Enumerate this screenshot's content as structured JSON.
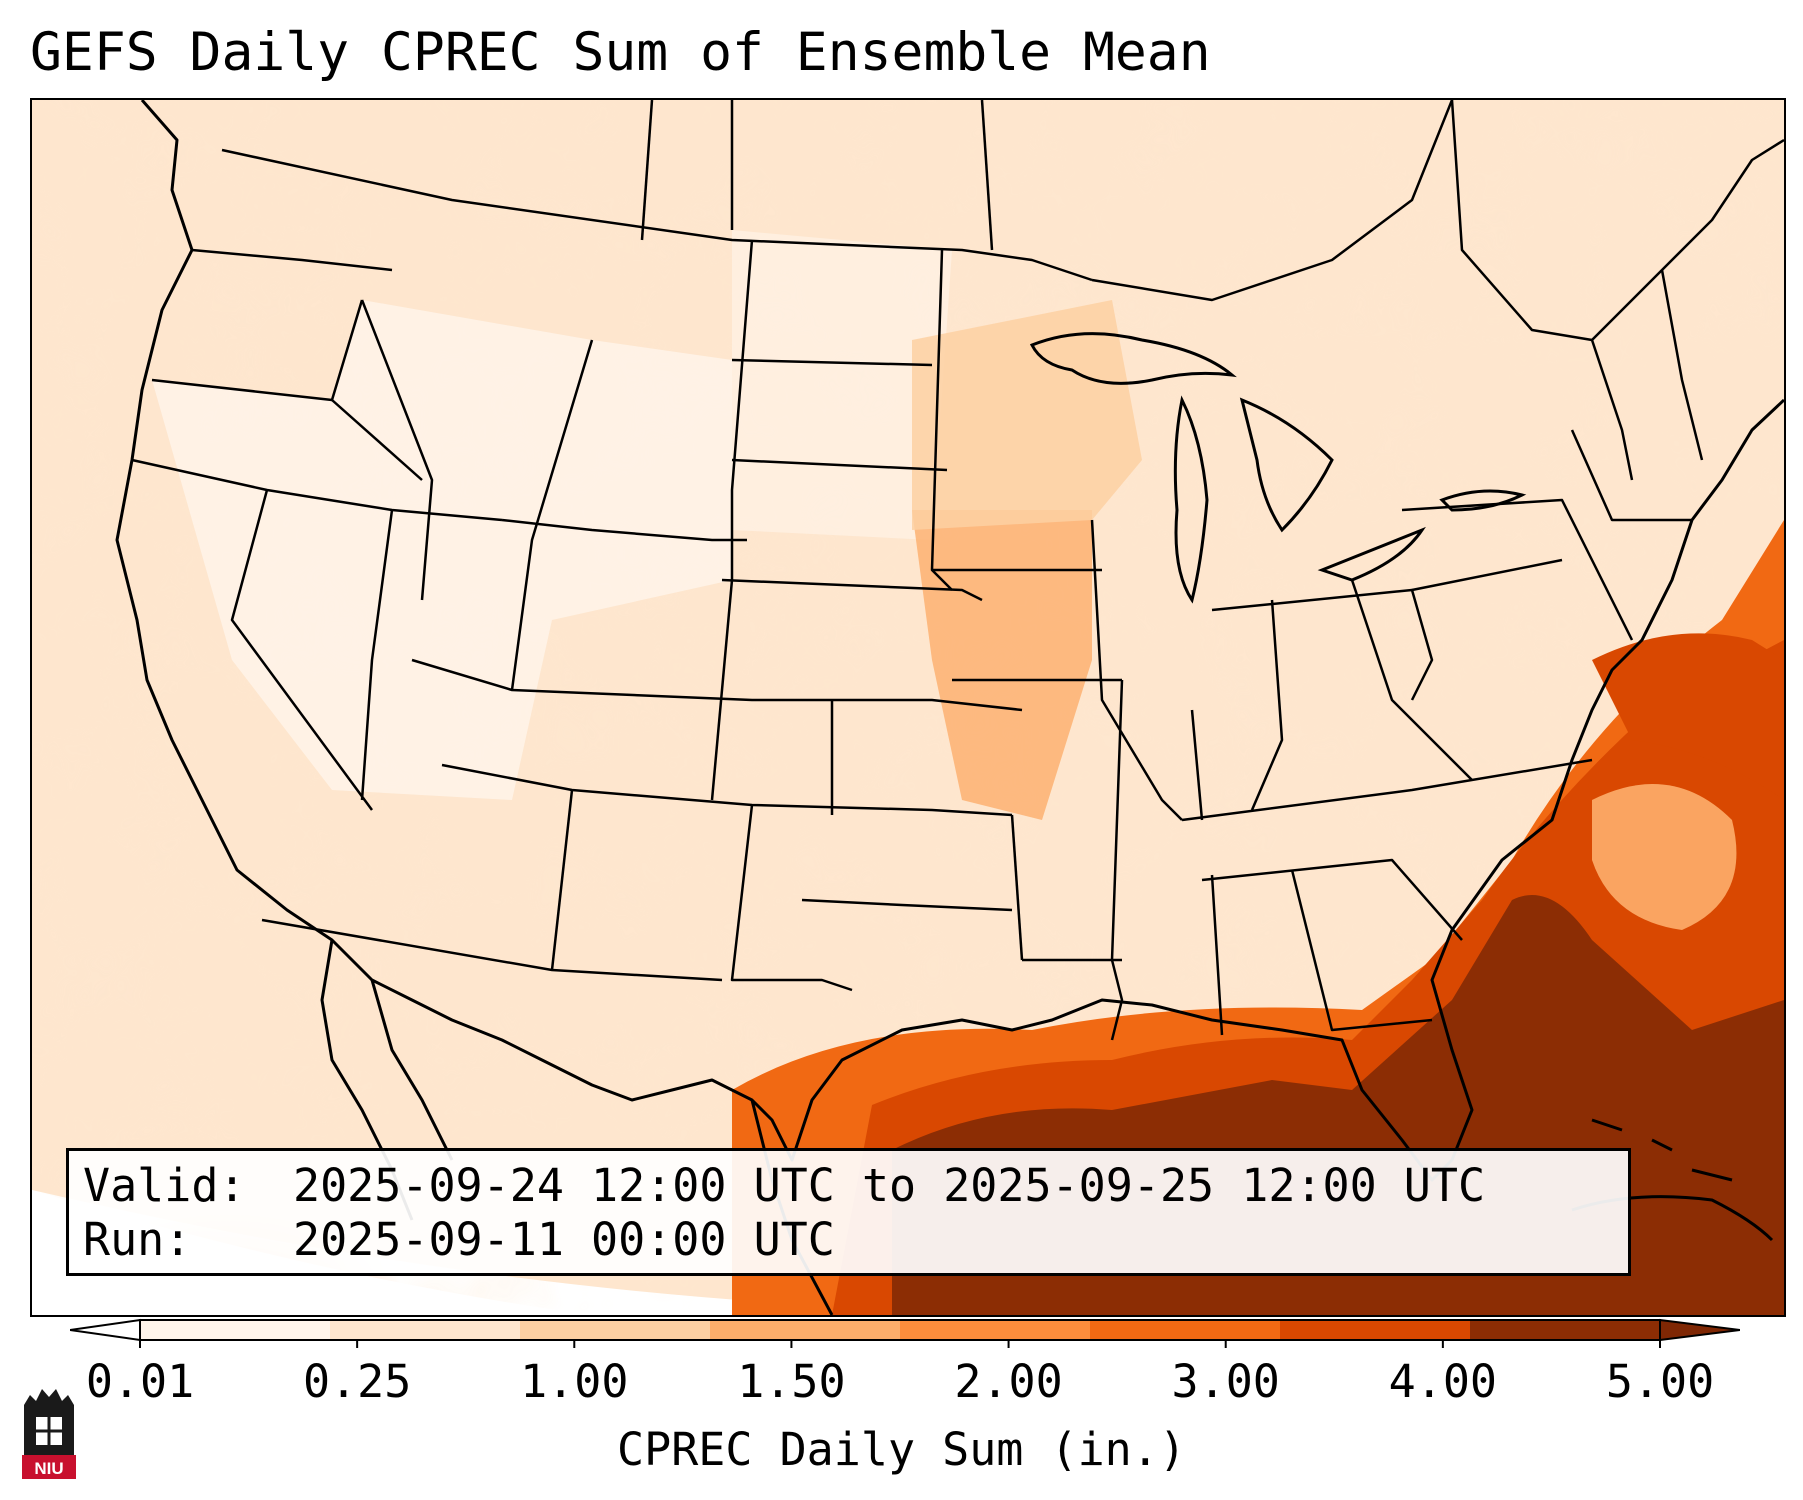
{
  "title": "GEFS Daily CPREC Sum of Ensemble Mean",
  "info": {
    "valid_label": "Valid:",
    "valid_value": "2025-09-24 12:00 UTC to 2025-09-25 12:00 UTC",
    "run_label": "Run:",
    "run_value": "2025-09-11 00:00 UTC"
  },
  "colorbar": {
    "label": "CPREC Daily Sum (in.)",
    "ticks": [
      "0.01",
      "0.25",
      "1.00",
      "1.50",
      "2.00",
      "3.00",
      "4.00",
      "5.00"
    ],
    "colors": [
      "#fff5eb",
      "#fee6ce",
      "#fdd0a2",
      "#fdae6b",
      "#fd8d3c",
      "#f16913",
      "#d94801",
      "#8c2d04"
    ],
    "under_color": "#ffffff",
    "over_color": "#7f2704"
  },
  "logo": {
    "text": "NIU",
    "color": "#c8102e"
  }
}
